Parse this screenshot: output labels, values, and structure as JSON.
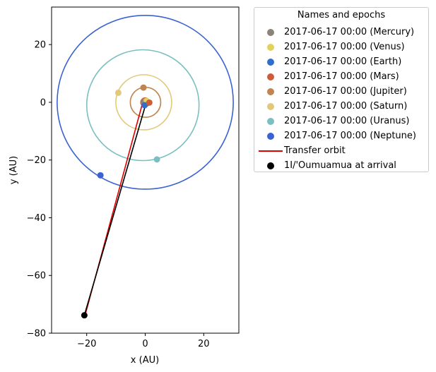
{
  "chart_data": {
    "type": "scatter",
    "xlabel": "x (AU)",
    "ylabel": "y (AU)",
    "xlim": [
      -32,
      32
    ],
    "ylim": [
      -80,
      33
    ],
    "x_ticks": [
      -20,
      0,
      20
    ],
    "y_ticks": [
      20,
      0,
      -20,
      -40,
      -60,
      -80
    ],
    "grid": false,
    "legend_position": "outside-right-top",
    "legend_title": "Names and epochs",
    "orbits": [
      {
        "name": "Mercury",
        "a": 0.39,
        "color": "#8a8478"
      },
      {
        "name": "Venus",
        "a": 0.72,
        "color": "#e2d25a"
      },
      {
        "name": "Earth",
        "a": 1.0,
        "color": "#2e6fcd"
      },
      {
        "name": "Mars",
        "a": 1.52,
        "color": "#cf5c36"
      },
      {
        "name": "Jupiter",
        "a": 5.2,
        "cx": 0.1,
        "cy": 0.0,
        "color": "#c0854e"
      },
      {
        "name": "Saturn",
        "a": 9.55,
        "cx": -0.5,
        "cy": 0.0,
        "color": "#e2c97a"
      },
      {
        "name": "Uranus",
        "a": 19.2,
        "cx": -0.8,
        "cy": -1.0,
        "color": "#7bbfc2"
      },
      {
        "name": "Neptune",
        "a": 30.1,
        "cx": 0.0,
        "cy": 0.0,
        "color": "#3a62d2"
      }
    ],
    "series": [
      {
        "name": "2017-06-17 00:00 (Mercury)",
        "marker": "dot",
        "color": "#8a8478",
        "x": [
          -0.3
        ],
        "y": [
          0.1
        ]
      },
      {
        "name": "2017-06-17 00:00 (Venus)",
        "marker": "dot",
        "color": "#e2d25a",
        "x": [
          0.5
        ],
        "y": [
          0.5
        ]
      },
      {
        "name": "2017-06-17 00:00 (Earth)",
        "marker": "dot",
        "color": "#2e6fcd",
        "x": [
          -0.2
        ],
        "y": [
          -1.0
        ]
      },
      {
        "name": "2017-06-17 00:00 (Mars)",
        "marker": "dot",
        "color": "#cf5c36",
        "x": [
          1.4
        ],
        "y": [
          -0.1
        ]
      },
      {
        "name": "2017-06-17 00:00 (Jupiter)",
        "marker": "dot",
        "color": "#c0854e",
        "x": [
          -0.6
        ],
        "y": [
          5.1
        ]
      },
      {
        "name": "2017-06-17 00:00 (Saturn)",
        "marker": "dot",
        "color": "#e2c97a",
        "x": [
          -9.2
        ],
        "y": [
          3.3
        ]
      },
      {
        "name": "2017-06-17 00:00 (Uranus)",
        "marker": "dot",
        "color": "#7bbfc2",
        "x": [
          4.0
        ],
        "y": [
          -19.8
        ]
      },
      {
        "name": "2017-06-17 00:00 (Neptune)",
        "marker": "dot",
        "color": "#3a62d2",
        "x": [
          -15.3
        ],
        "y": [
          -25.3
        ]
      },
      {
        "name": "Transfer orbit",
        "marker": "line",
        "color": "#e00000",
        "x": [
          -0.9,
          -20.5
        ],
        "y": [
          -0.2,
          -73.6
        ]
      },
      {
        "name": "1I/'Oumuamua at arrival",
        "marker": "dot",
        "color": "#000000",
        "x": [
          -20.8
        ],
        "y": [
          -73.8
        ]
      }
    ],
    "trajectory": {
      "color": "#000000",
      "x": [
        0.0,
        -20.8
      ],
      "y": [
        -1.3,
        -73.8
      ]
    }
  }
}
